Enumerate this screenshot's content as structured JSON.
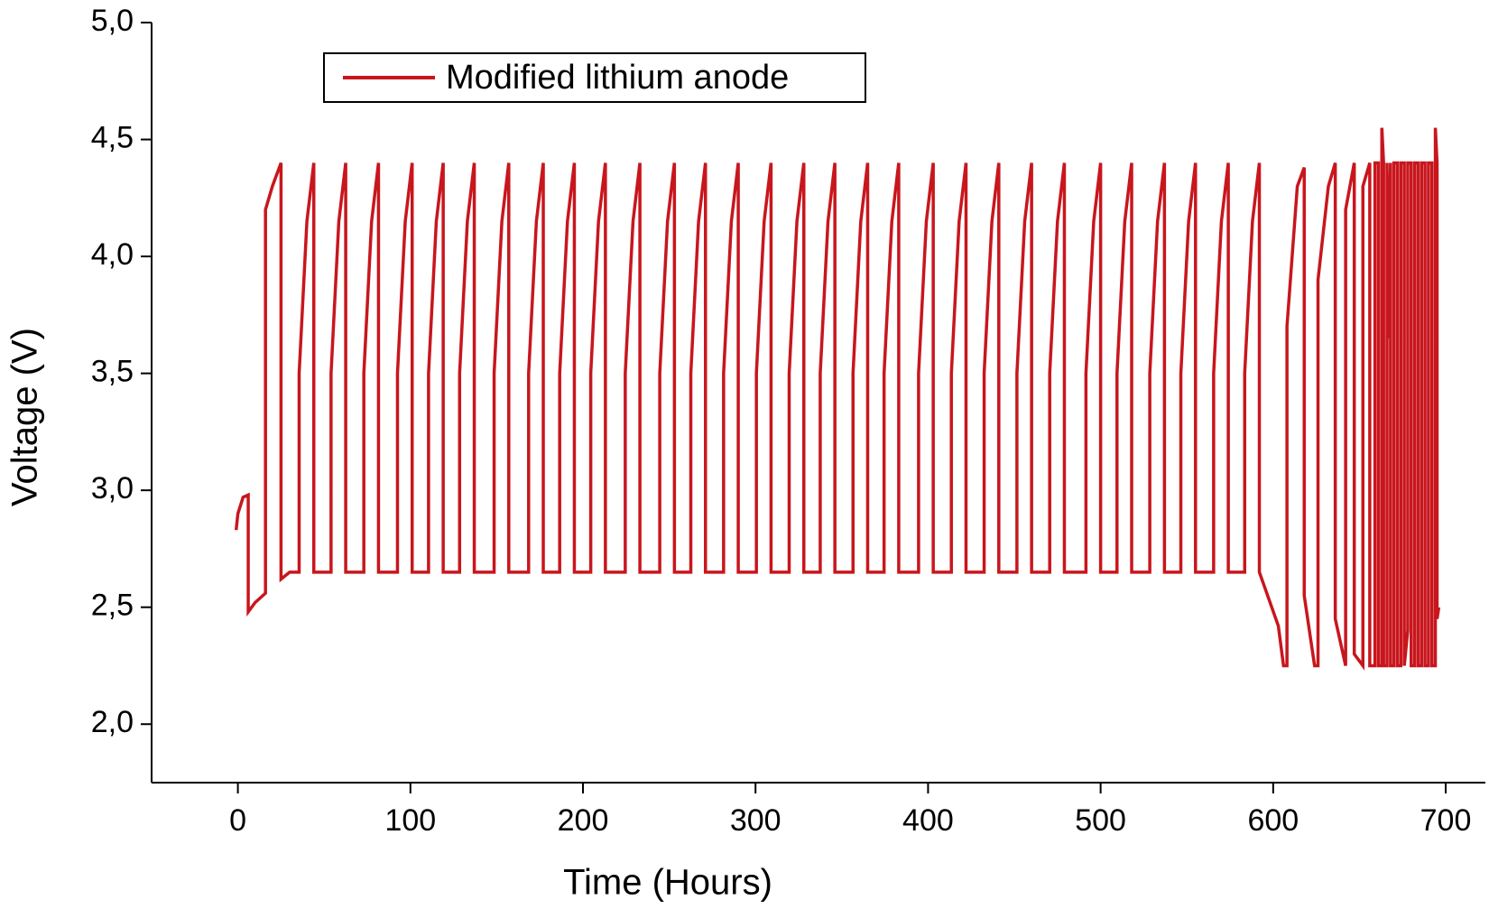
{
  "chart_data": {
    "type": "line",
    "x_label": "Time (Hours)",
    "y_label": "Voltage (V)",
    "xlim": [
      -50,
      723
    ],
    "ylim": [
      1.75,
      5.0
    ],
    "xticks": [
      0,
      100,
      200,
      300,
      400,
      500,
      600,
      700
    ],
    "yticks": [
      {
        "value": 2.0,
        "label": "2,0"
      },
      {
        "value": 2.5,
        "label": "2,5"
      },
      {
        "value": 3.0,
        "label": "3,0"
      },
      {
        "value": 3.5,
        "label": "3,5"
      },
      {
        "value": 4.0,
        "label": "4,0"
      },
      {
        "value": 4.5,
        "label": "4,5"
      },
      {
        "value": 5.0,
        "label": "5,0"
      }
    ],
    "grid": false,
    "legend": "upper left",
    "series": [
      {
        "name": "Modified lithium anode",
        "color": "#c8161d",
        "x": [
          -1,
          0,
          3,
          6,
          6,
          10,
          16,
          16,
          20,
          25,
          25,
          30,
          35.5,
          35.5,
          40,
          44,
          44,
          54,
          54,
          58.5,
          62.5,
          62.5,
          73,
          73,
          77.5,
          81.5,
          81.5,
          92.5,
          92.5,
          97,
          101,
          101,
          110.5,
          110.5,
          115,
          119,
          119,
          128.5,
          128.5,
          133,
          137,
          137,
          148.5,
          148.5,
          153,
          157,
          157,
          168.5,
          168.5,
          173,
          177,
          177,
          186.5,
          186.5,
          191,
          195,
          195,
          204.5,
          204.5,
          209,
          213,
          213,
          224.5,
          224.5,
          229,
          233,
          233,
          244.5,
          244.5,
          249,
          253,
          253,
          262.5,
          262.5,
          267,
          271,
          271,
          281.5,
          281.5,
          286,
          290,
          290,
          300.5,
          300.5,
          305,
          309,
          309,
          319.5,
          319.5,
          324,
          328,
          328,
          337.5,
          337.5,
          342,
          346,
          346,
          356.5,
          356.5,
          361,
          365,
          365,
          374.5,
          374.5,
          379,
          383,
          383,
          394.5,
          394.5,
          399,
          403,
          403,
          413.5,
          413.5,
          418,
          422,
          422,
          432.5,
          432.5,
          437,
          441,
          441,
          451.5,
          451.5,
          456,
          460,
          460,
          470.5,
          470.5,
          475,
          479,
          479,
          491.5,
          491.5,
          496,
          500,
          500,
          509.5,
          509.5,
          514,
          518,
          518,
          528.5,
          528.5,
          533,
          537,
          537,
          546.5,
          546.5,
          551,
          555,
          555,
          565.5,
          565.5,
          570,
          574,
          574,
          583.5,
          583.5,
          588,
          592,
          592,
          603,
          606,
          608,
          608,
          614,
          618,
          618,
          624,
          626,
          626,
          632,
          636,
          636,
          642,
          642,
          647,
          647,
          652,
          652,
          656,
          656,
          659,
          659,
          661,
          661,
          663,
          663,
          664,
          664,
          666,
          666,
          667,
          668,
          668,
          670,
          670,
          672,
          672,
          674,
          674,
          676,
          676,
          678,
          678,
          680,
          680,
          682,
          682,
          684,
          684,
          686,
          686,
          688,
          688,
          690,
          690,
          692,
          692,
          694,
          694,
          695,
          695,
          696
        ],
        "values": [
          2.83,
          2.9,
          2.97,
          2.98,
          2.48,
          2.52,
          2.56,
          4.2,
          4.3,
          4.4,
          2.62,
          2.65,
          2.65,
          3.5,
          4.15,
          4.4,
          2.65,
          2.65,
          3.5,
          4.15,
          4.4,
          2.65,
          2.65,
          3.5,
          4.15,
          4.4,
          2.65,
          2.65,
          3.5,
          4.15,
          4.4,
          2.65,
          2.65,
          3.5,
          4.15,
          4.4,
          2.65,
          2.65,
          3.5,
          4.15,
          4.4,
          2.65,
          2.65,
          3.5,
          4.15,
          4.4,
          2.65,
          2.65,
          3.5,
          4.15,
          4.4,
          2.65,
          2.65,
          3.5,
          4.15,
          4.4,
          2.65,
          2.65,
          3.5,
          4.15,
          4.4,
          2.65,
          2.65,
          3.5,
          4.15,
          4.4,
          2.65,
          2.65,
          3.5,
          4.15,
          4.4,
          2.65,
          2.65,
          3.5,
          4.15,
          4.4,
          2.65,
          2.65,
          3.5,
          4.15,
          4.4,
          2.65,
          2.65,
          3.5,
          4.15,
          4.4,
          2.65,
          2.65,
          3.5,
          4.15,
          4.4,
          2.65,
          2.65,
          3.5,
          4.15,
          4.4,
          2.65,
          2.65,
          3.5,
          4.15,
          4.4,
          2.65,
          2.65,
          3.5,
          4.15,
          4.4,
          2.65,
          2.65,
          3.5,
          4.15,
          4.4,
          2.65,
          2.65,
          3.5,
          4.15,
          4.4,
          2.65,
          2.65,
          3.5,
          4.15,
          4.4,
          2.65,
          2.65,
          3.5,
          4.15,
          4.4,
          2.65,
          2.65,
          3.5,
          4.15,
          4.4,
          2.65,
          2.65,
          3.5,
          4.15,
          4.4,
          2.65,
          2.65,
          3.5,
          4.15,
          4.4,
          2.65,
          2.65,
          3.5,
          4.15,
          4.4,
          2.65,
          2.65,
          3.5,
          4.15,
          4.4,
          2.65,
          2.65,
          3.5,
          4.15,
          4.4,
          2.65,
          2.65,
          3.5,
          4.15,
          4.4,
          2.65,
          2.42,
          2.25,
          2.25,
          3.7,
          4.3,
          4.38,
          2.55,
          2.25,
          2.25,
          3.9,
          4.3,
          4.4,
          2.45,
          2.25,
          4.2,
          4.4,
          2.3,
          2.25,
          4.3,
          4.4,
          2.25,
          2.25,
          4.4,
          4.4,
          2.25,
          2.25,
          4.55,
          4.4,
          2.25,
          2.25,
          4.4,
          3.65,
          4.4,
          2.25,
          2.25,
          4.4,
          4.4,
          2.25,
          2.25,
          4.4,
          4.4,
          2.25,
          2.4,
          4.4,
          4.4,
          2.25,
          2.25,
          4.4,
          4.4,
          2.25,
          2.25,
          4.4,
          4.4,
          2.25,
          2.25,
          4.4,
          4.4,
          2.25,
          2.25,
          4.55,
          4.4,
          2.45,
          2.5
        ]
      }
    ]
  }
}
